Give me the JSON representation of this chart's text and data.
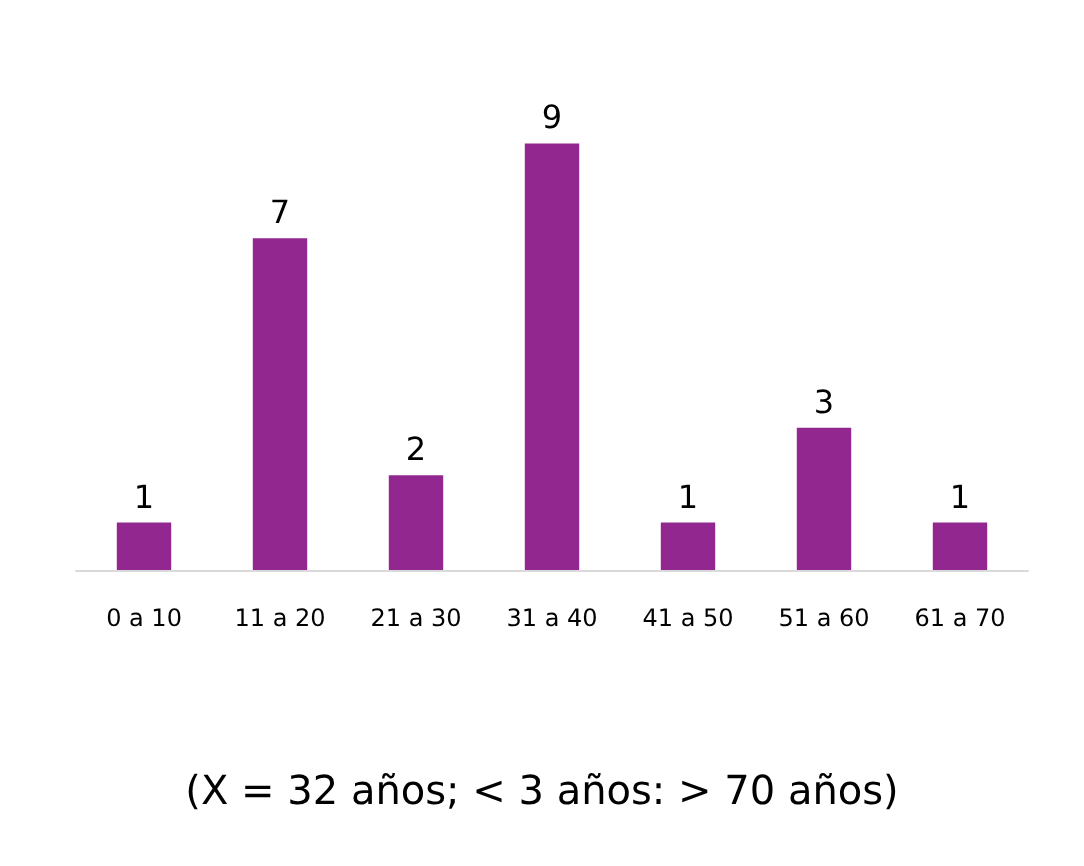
{
  "chart_data": {
    "type": "bar",
    "categories": [
      "0 a 10",
      "11 a 20",
      "21 a 30",
      "31 a 40",
      "41 a 50",
      "51 a 60",
      "61 a 70"
    ],
    "values": [
      1,
      7,
      2,
      9,
      1,
      3,
      1
    ],
    "color": "#92278f",
    "data_labels": true,
    "tick_labels": "x",
    "annotations": [
      "(X = 32 años; < 3 años: > 70 años)"
    ]
  }
}
